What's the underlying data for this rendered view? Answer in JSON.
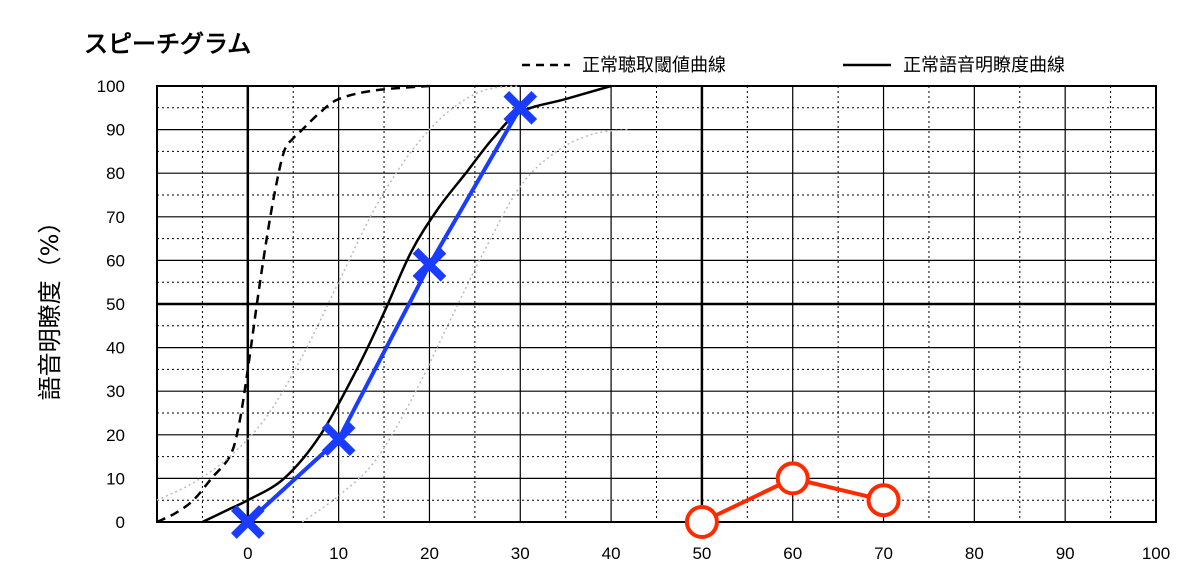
{
  "chart_data": {
    "type": "line",
    "title": "スピーチグラム",
    "ylabel": "語音明瞭度（%）",
    "xlabel": "",
    "xlim": [
      -10,
      100
    ],
    "ylim": [
      0,
      100
    ],
    "x_ticks": [
      0,
      10,
      20,
      30,
      40,
      50,
      60,
      70,
      80,
      90,
      100
    ],
    "y_ticks": [
      0,
      10,
      20,
      30,
      40,
      50,
      60,
      70,
      80,
      90,
      100
    ],
    "grid": true,
    "legend_position": "top-right",
    "legend": [
      {
        "label": "正常聴取閾値曲線",
        "style": "dashed"
      },
      {
        "label": "正常語音明瞭度曲線",
        "style": "solid"
      }
    ],
    "reference_curves": [
      {
        "name": "正常聴取閾値曲線",
        "style": "dashed",
        "color": "#000000",
        "x": [
          -10,
          -8,
          -6,
          -4,
          -2,
          -1,
          0,
          1,
          2,
          3,
          4,
          5,
          6,
          8,
          10,
          14,
          20
        ],
        "y": [
          0,
          2,
          5,
          10,
          15,
          22,
          35,
          50,
          64,
          76,
          85,
          88,
          90,
          94,
          97,
          99,
          100
        ]
      },
      {
        "name": "正常語音明瞭度曲線",
        "style": "solid",
        "color": "#000000",
        "x": [
          -5,
          -2,
          0,
          4,
          8,
          12,
          15,
          18,
          21,
          24,
          27,
          30,
          35,
          40
        ],
        "y": [
          0,
          3,
          5,
          10,
          20,
          35,
          48,
          62,
          72,
          80,
          88,
          94,
          97,
          100
        ]
      },
      {
        "name": "",
        "style": "dotted",
        "color": "#bbbbbb",
        "x": [
          -10,
          -6,
          -2,
          2,
          6,
          10,
          14,
          18,
          22,
          26,
          30
        ],
        "y": [
          5,
          9,
          15,
          24,
          38,
          55,
          72,
          85,
          94,
          99,
          100
        ]
      },
      {
        "name": "",
        "style": "dotted",
        "color": "#bbbbbb",
        "x": [
          6,
          10,
          14,
          18,
          22,
          26,
          30,
          34,
          38,
          42
        ],
        "y": [
          0,
          6,
          14,
          28,
          45,
          62,
          77,
          85,
          89,
          90
        ]
      }
    ],
    "series": [
      {
        "name": "",
        "marker": "x",
        "color": "#1a3cff",
        "x": [
          0,
          10,
          20,
          30
        ],
        "y": [
          0,
          19,
          59,
          95
        ]
      },
      {
        "name": "",
        "marker": "o",
        "color": "#ff2a00",
        "x": [
          50,
          60,
          70
        ],
        "y": [
          0,
          10,
          5
        ]
      }
    ]
  }
}
